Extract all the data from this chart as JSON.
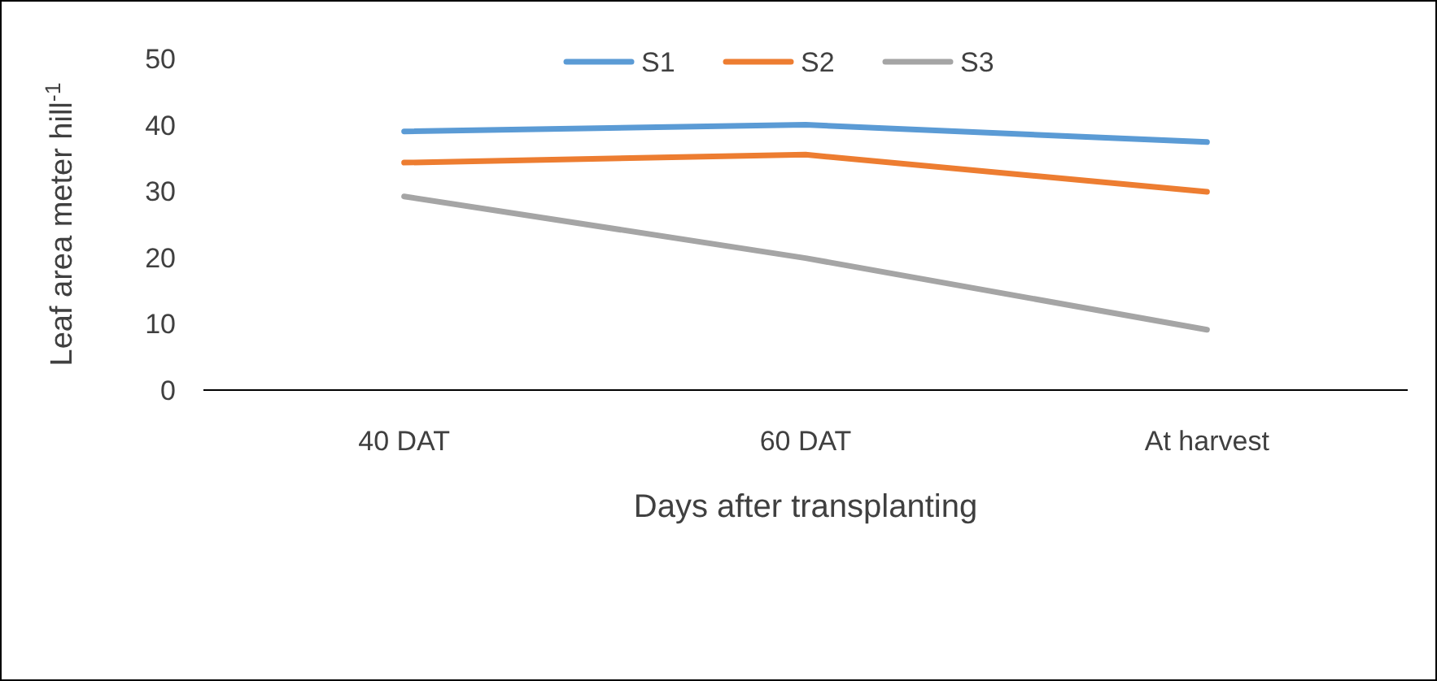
{
  "chart_data": {
    "type": "line",
    "xlabel": "Days after transplanting",
    "ylabel": "Leaf area meter hill$^{-1}$",
    "categories": [
      "40 DAT",
      "60 DAT",
      "At harvest"
    ],
    "series": [
      {
        "name": "S1",
        "color": "#5b9bd5",
        "values": [
          39,
          40,
          37.4
        ]
      },
      {
        "name": "S2",
        "color": "#ed7d31",
        "values": [
          34.3,
          35.5,
          29.9
        ]
      },
      {
        "name": "S3",
        "color": "#a5a5a5",
        "values": [
          29.2,
          19.9,
          9.1
        ]
      }
    ],
    "ylim": [
      0,
      50
    ],
    "yticks": [
      0,
      10,
      20,
      30,
      40,
      50
    ],
    "grid": false,
    "legend": "top",
    "marker": "none",
    "line_style": "solid"
  }
}
